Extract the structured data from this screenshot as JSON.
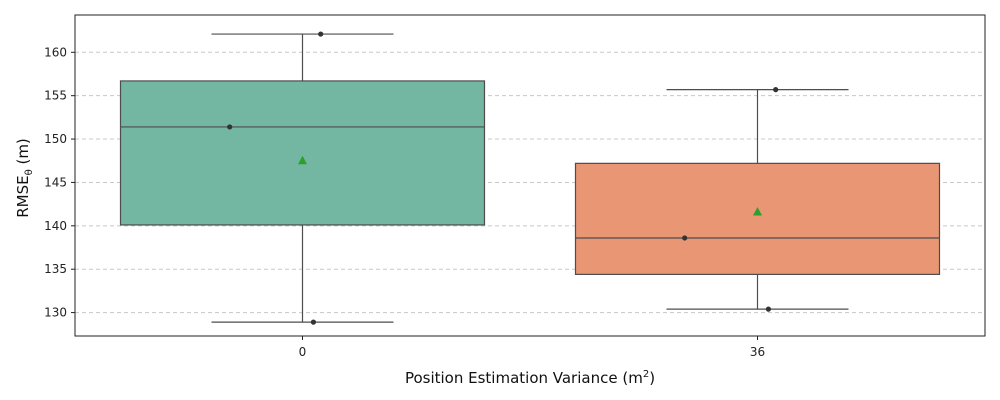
{
  "chart_data": {
    "type": "box",
    "categories": [
      "0",
      "36"
    ],
    "xlabel": {
      "main": "Position Estimation Variance (m",
      "sup": "2",
      "tail": ")"
    },
    "ylabel": {
      "main": "RMSE",
      "sub": "θ",
      "tail": " (m)"
    },
    "ylim": [
      127.3,
      164.3
    ],
    "yticks": [
      130,
      135,
      140,
      145,
      150,
      155,
      160
    ],
    "grid": "horizontal-dashed",
    "series": [
      {
        "category": "0",
        "color": "#73b6a1",
        "whisker_low": 128.9,
        "q1": 140.1,
        "median": 151.4,
        "q3": 156.7,
        "whisker_high": 162.1,
        "mean": 147.5,
        "points": [
          162.1,
          151.4,
          128.9
        ]
      },
      {
        "category": "36",
        "color": "#e99675",
        "whisker_low": 130.4,
        "q1": 134.4,
        "median": 138.6,
        "q3": 147.2,
        "whisker_high": 155.7,
        "mean": 141.6,
        "points": [
          155.7,
          138.6,
          130.4
        ]
      }
    ],
    "mean_marker_color": "#2ca02c"
  }
}
